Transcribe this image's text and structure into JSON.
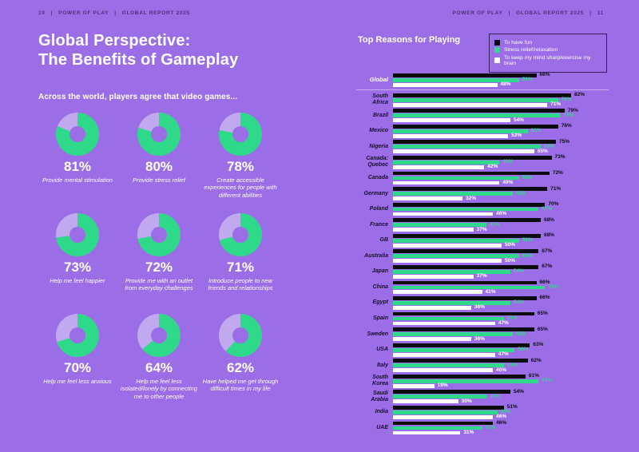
{
  "colors": {
    "background": "#9b6ee8",
    "accent_green": "#2fd98a",
    "lavender_remainder": "#c0a9ee",
    "bar_black": "#0c0c0c",
    "bar_white": "#ffffff"
  },
  "header": {
    "separator": "|",
    "left": {
      "page_number": "10",
      "brand": "POWER OF PLAY",
      "report": "GLOBAL REPORT 2025"
    },
    "right": {
      "brand": "POWER OF PLAY",
      "report": "GLOBAL REPORT 2025",
      "page_number": "11"
    }
  },
  "left_section": {
    "title_line1": "Global Perspective:",
    "title_line2": "The Benefits of Gameplay",
    "intro": "Across the world, players agree that video games..."
  },
  "chart_data": [
    {
      "type": "pie",
      "variant": "donut-grid",
      "title": "Across the world, players agree that video games...",
      "filled_color": "#2fd98a",
      "remainder_color": "#c0a9ee",
      "items": [
        {
          "value": 81,
          "label": "Provide mental stimulation"
        },
        {
          "value": 80,
          "label": "Provide stress relief"
        },
        {
          "value": 78,
          "label": "Create accessible experiences for people with different abilities"
        },
        {
          "value": 73,
          "label": "Help me feel happier"
        },
        {
          "value": 72,
          "label": "Provide me with an outlet from everyday challenges"
        },
        {
          "value": 71,
          "label": "Introduce people to new friends and relationships"
        },
        {
          "value": 70,
          "label": "Help me feel less anxious"
        },
        {
          "value": 64,
          "label": "Help me feel less isolated/lonely by connecting me to other people"
        },
        {
          "value": 62,
          "label": "Have helped me get through difficult times in my life"
        }
      ]
    },
    {
      "type": "bar",
      "orientation": "horizontal",
      "title": "Top Reasons for Playing",
      "xlim": [
        0,
        100
      ],
      "legend_position": "top-right",
      "categories": [
        "Global",
        "South Africa",
        "Brazil",
        "Mexico",
        "Nigeria",
        "Canada: Quebec",
        "Canada",
        "Germany",
        "Poland",
        "France",
        "GB",
        "Australia",
        "Japan",
        "China",
        "Egypt",
        "Spain",
        "Sweden",
        "USA",
        "Italy",
        "South Korea",
        "Saudi Arabia",
        "India",
        "UAE"
      ],
      "series": [
        {
          "name": "To have fun",
          "color": "#0c0c0c",
          "values": [
            66,
            82,
            79,
            76,
            75,
            73,
            72,
            71,
            70,
            68,
            68,
            67,
            67,
            66,
            66,
            65,
            65,
            63,
            62,
            61,
            54,
            51,
            46
          ]
        },
        {
          "name": "Stress relief/relaxation",
          "color": "#2fd98a",
          "values": [
            58,
            76,
            77,
            62,
            68,
            49,
            58,
            55,
            67,
            43,
            58,
            58,
            54,
            70,
            54,
            51,
            55,
            56,
            51,
            67,
            43,
            48,
            41
          ]
        },
        {
          "name": "To keep my mind sharp/exercise my brain",
          "color": "#ffffff",
          "values": [
            48,
            71,
            54,
            53,
            65,
            42,
            49,
            32,
            46,
            37,
            50,
            50,
            37,
            41,
            36,
            47,
            36,
            47,
            46,
            19,
            30,
            46,
            31
          ]
        }
      ]
    }
  ]
}
